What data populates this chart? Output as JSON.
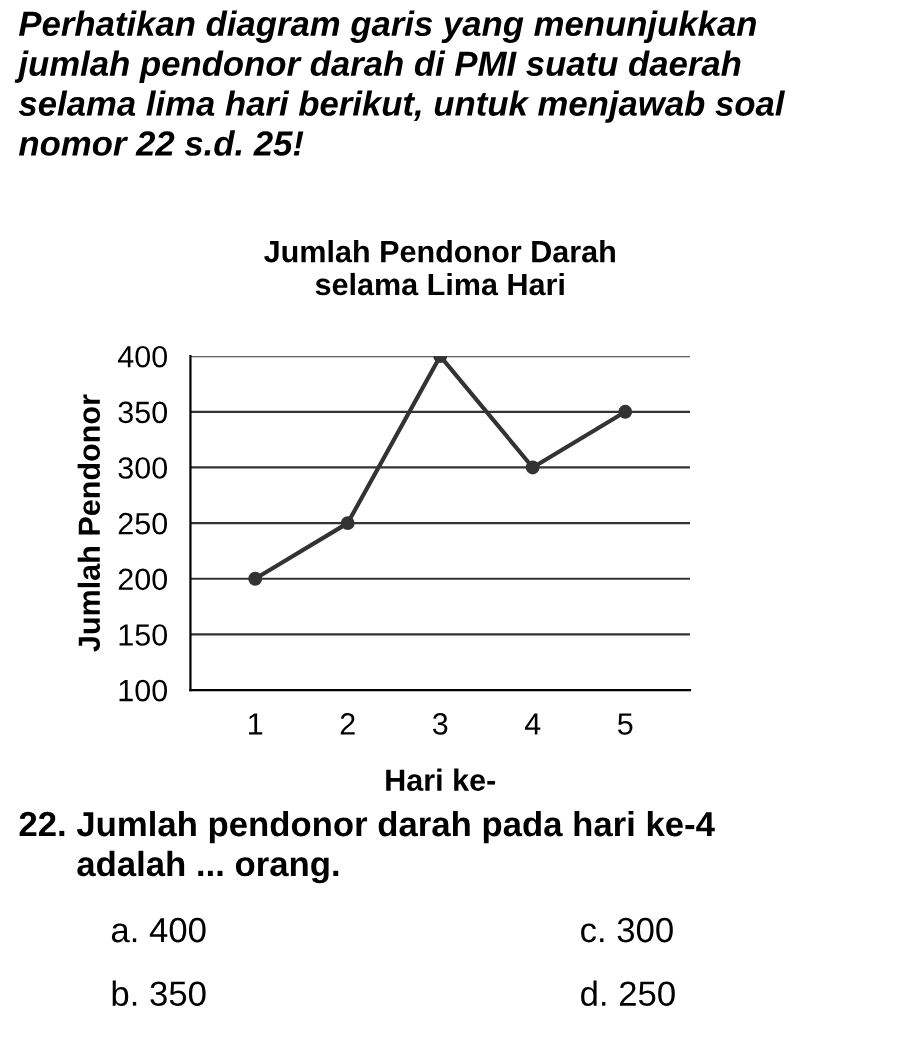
{
  "chart_data": {
    "type": "line",
    "title": "Jumlah Pendonor Darah\nselama Lima Hari",
    "xlabel": "Hari ke-",
    "ylabel": "Jumlah Pendonor",
    "categories": [
      "1",
      "2",
      "3",
      "4",
      "5"
    ],
    "series": [
      {
        "color": "#333333",
        "values": [
          200,
          250,
          400,
          300,
          350
        ]
      }
    ],
    "ylim": [
      100,
      400
    ],
    "yticks": [
      100,
      150,
      200,
      250,
      300,
      350,
      400
    ],
    "grid": "y",
    "marker": "circle",
    "line_style": "solid",
    "annotations": [
      "Perhatikan diagram garis yang menunjukkan\njumlah pendonor darah di PMI suatu daerah\nselama lima hari berikut, untuk menjawab soal\nnomor 22 s.d. 25!",
      "22. Jumlah pendonor darah pada hari ke-4\n      adalah ... orang.",
      "a. 400",
      "c. 300",
      "b. 350",
      "d. 250"
    ]
  }
}
